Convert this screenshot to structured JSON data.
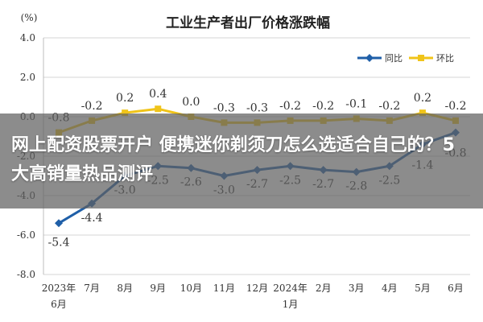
{
  "chart_data": {
    "type": "line",
    "title": "工业生产者出厂价格涨跌幅",
    "unit_label": "(%)",
    "categories": [
      "2023年\n6月",
      "7月",
      "8月",
      "9月",
      "10月",
      "11月",
      "12月",
      "2024年\n1月",
      "2月",
      "3月",
      "4月",
      "5月",
      "6月"
    ],
    "ylim": [
      -8.0,
      4.0
    ],
    "yticks": [
      "4.0",
      "2.0",
      "0.0",
      "-2.0",
      "-4.0",
      "-6.0",
      "-8.0"
    ],
    "legend_position": "top-right",
    "grid": "horizontal",
    "series": [
      {
        "name": "同比",
        "color": "#1f5fa8",
        "values": [
          -5.4,
          -4.4,
          -3.0,
          -2.5,
          -2.6,
          -3.0,
          -2.7,
          -2.5,
          -2.7,
          -2.8,
          -2.5,
          -1.4,
          -0.8
        ],
        "labels": [
          "-5.4",
          "-4.4",
          "-3.0",
          "-2.5",
          "-2.6",
          "-3.0",
          "-2.7",
          "-2.5",
          "-2.7",
          "-2.8",
          "-2.5",
          "-1.4",
          "-0.8"
        ]
      },
      {
        "name": "环比",
        "color": "#f0c419",
        "values": [
          -0.8,
          -0.2,
          0.2,
          0.4,
          0.0,
          -0.3,
          -0.3,
          -0.2,
          -0.2,
          -0.1,
          -0.2,
          0.2,
          -0.2
        ],
        "labels": [
          "-0.8",
          "-0.2",
          "0.2",
          "0.4",
          "0.0",
          "-0.3",
          "-0.3",
          "-0.2",
          "-0.2",
          "-0.1",
          "-0.2",
          "0.2",
          "-0.2"
        ]
      }
    ]
  },
  "overlay": {
    "text": "网上配资股票开户 便携迷你剃须刀怎么选适合自己的？5大高销量热品测评"
  }
}
